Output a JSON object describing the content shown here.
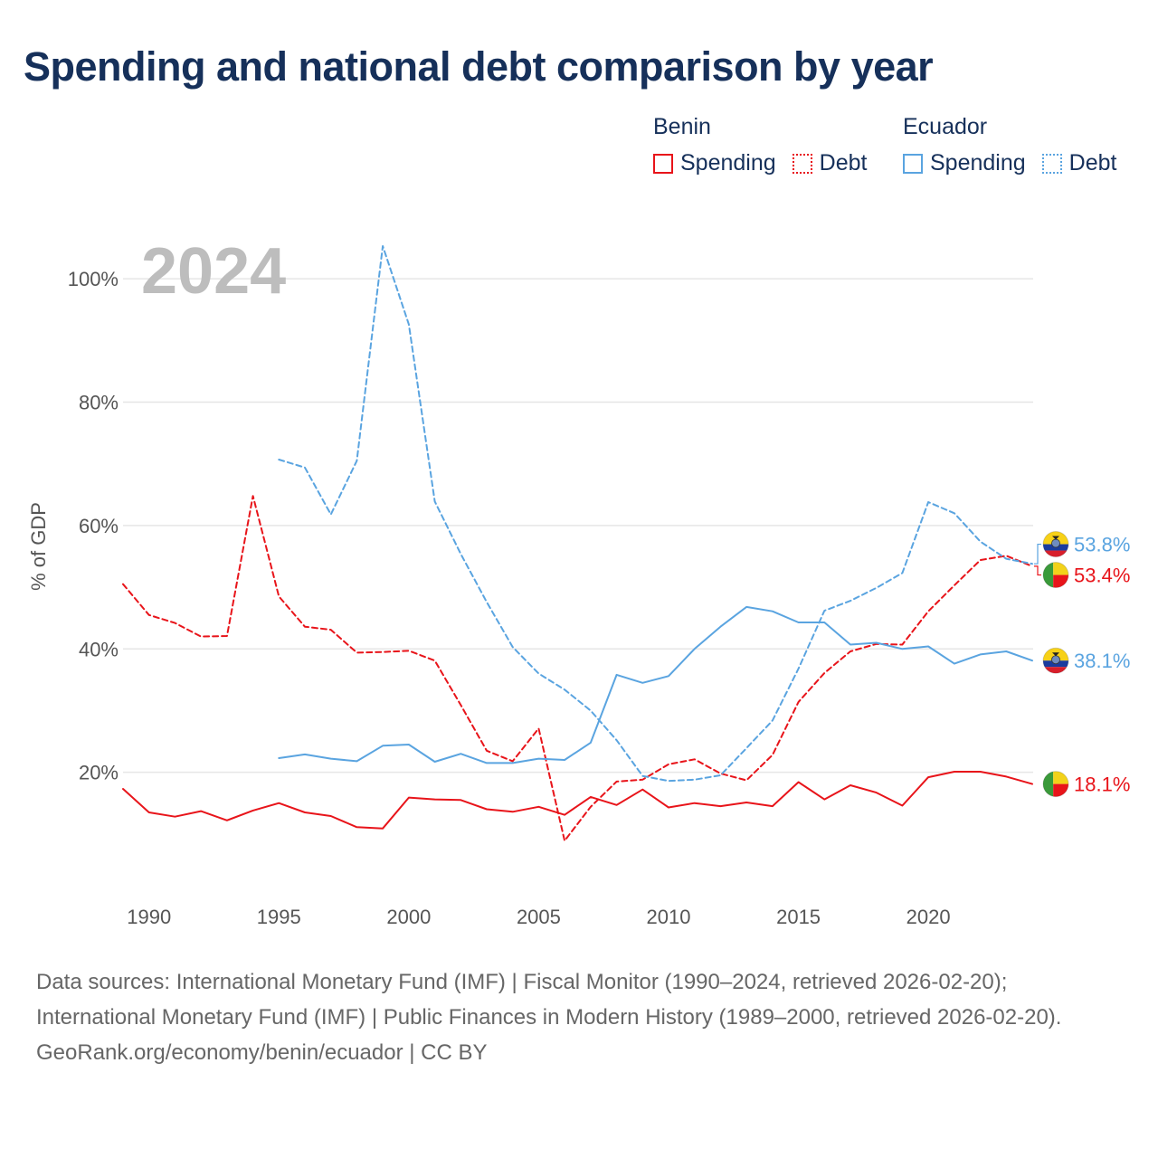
{
  "title": "Spending and national debt comparison by year",
  "colors": {
    "benin": "#e8141a",
    "ecuador": "#5aa4e0",
    "grid": "#e6e6e6",
    "year_watermark": "#bdbdbd"
  },
  "legend": {
    "groups": [
      {
        "country": "Benin",
        "color": "#e8141a",
        "items": [
          {
            "label": "Spending",
            "style": "solid"
          },
          {
            "label": "Debt",
            "style": "dotted"
          }
        ]
      },
      {
        "country": "Ecuador",
        "color": "#5aa4e0",
        "items": [
          {
            "label": "Spending",
            "style": "solid"
          },
          {
            "label": "Debt",
            "style": "dotted"
          }
        ]
      }
    ]
  },
  "chart_data": {
    "type": "line",
    "year_label": "2024",
    "ylabel": "% of GDP",
    "xlabel": "",
    "xlim": [
      1989,
      2024
    ],
    "ylim": [
      0,
      110
    ],
    "x_ticks": [
      1990,
      1995,
      2000,
      2005,
      2010,
      2015,
      2020
    ],
    "y_ticks": [
      20,
      40,
      60,
      80,
      100
    ],
    "y_tick_labels": [
      "20%",
      "40%",
      "60%",
      "80%",
      "100%"
    ],
    "grid": true,
    "series": [
      {
        "name": "Benin Spending",
        "country": "Benin",
        "metric": "Spending",
        "style": "solid",
        "color": "#e8141a",
        "end_label": "18.1%",
        "flag": "benin",
        "x": [
          1989,
          1990,
          1991,
          1992,
          1993,
          1994,
          1995,
          1996,
          1997,
          1998,
          1999,
          2000,
          2001,
          2002,
          2003,
          2004,
          2005,
          2006,
          2007,
          2008,
          2009,
          2010,
          2011,
          2012,
          2013,
          2014,
          2015,
          2016,
          2017,
          2018,
          2019,
          2020,
          2021,
          2022,
          2023,
          2024
        ],
        "values": [
          17.3,
          13.5,
          12.8,
          13.7,
          12.2,
          13.8,
          15.0,
          13.5,
          12.9,
          11.1,
          10.9,
          15.9,
          15.6,
          15.5,
          14.0,
          13.6,
          14.4,
          13.1,
          16.0,
          14.7,
          17.2,
          14.3,
          15.0,
          14.5,
          15.1,
          14.5,
          18.4,
          15.6,
          17.9,
          16.7,
          14.6,
          19.2,
          20.1,
          20.1,
          19.3,
          18.1
        ]
      },
      {
        "name": "Benin Debt",
        "country": "Benin",
        "metric": "Debt",
        "style": "dashed",
        "color": "#e8141a",
        "end_label": "53.4%",
        "flag": "benin",
        "x": [
          1989,
          1990,
          1991,
          1992,
          1993,
          1994,
          1995,
          1996,
          1997,
          1998,
          1999,
          2000,
          2001,
          2002,
          2003,
          2004,
          2005,
          2006,
          2007,
          2008,
          2009,
          2010,
          2011,
          2012,
          2013,
          2014,
          2015,
          2016,
          2017,
          2018,
          2019,
          2020,
          2021,
          2022,
          2023,
          2024
        ],
        "values": [
          50.5,
          45.5,
          44.2,
          42.0,
          42.1,
          64.8,
          48.5,
          43.6,
          43.1,
          39.4,
          39.5,
          39.7,
          38.1,
          30.9,
          23.5,
          21.8,
          27.1,
          8.9,
          14.4,
          18.5,
          18.8,
          21.3,
          22.1,
          19.8,
          18.7,
          22.8,
          31.4,
          36.1,
          39.6,
          40.8,
          40.7,
          46.1,
          50.3,
          54.4,
          55.1,
          53.4
        ]
      },
      {
        "name": "Ecuador Spending",
        "country": "Ecuador",
        "metric": "Spending",
        "style": "solid",
        "color": "#5aa4e0",
        "end_label": "38.1%",
        "flag": "ecuador",
        "x": [
          1995,
          1996,
          1997,
          1998,
          1999,
          2000,
          2001,
          2002,
          2003,
          2004,
          2005,
          2006,
          2007,
          2008,
          2009,
          2010,
          2011,
          2012,
          2013,
          2014,
          2015,
          2016,
          2017,
          2018,
          2019,
          2020,
          2021,
          2022,
          2023,
          2024
        ],
        "values": [
          22.3,
          22.9,
          22.2,
          21.8,
          24.3,
          24.5,
          21.7,
          23.0,
          21.5,
          21.5,
          22.2,
          22.0,
          24.8,
          35.8,
          34.5,
          35.6,
          40.0,
          43.6,
          46.8,
          46.1,
          44.3,
          44.3,
          40.7,
          41.0,
          40.0,
          40.4,
          37.6,
          39.1,
          39.6,
          38.1
        ]
      },
      {
        "name": "Ecuador Debt",
        "country": "Ecuador",
        "metric": "Debt",
        "style": "dashed",
        "color": "#5aa4e0",
        "end_label": "53.8%",
        "flag": "ecuador",
        "x": [
          1995,
          1996,
          1997,
          1998,
          1999,
          2000,
          2001,
          2002,
          2003,
          2004,
          2005,
          2006,
          2007,
          2008,
          2009,
          2010,
          2011,
          2012,
          2013,
          2014,
          2015,
          2016,
          2017,
          2018,
          2019,
          2020,
          2021,
          2022,
          2023,
          2024
        ],
        "values": [
          70.7,
          69.4,
          61.8,
          70.5,
          105.3,
          92.6,
          63.9,
          55.4,
          47.6,
          40.3,
          36.0,
          33.4,
          30.0,
          25.2,
          19.4,
          18.6,
          18.8,
          19.5,
          23.9,
          28.4,
          36.8,
          46.2,
          47.8,
          49.9,
          52.3,
          63.8,
          62.0,
          57.4,
          54.6,
          53.8
        ]
      }
    ]
  },
  "footer": {
    "sources": "Data sources: International Monetary Fund (IMF) | Fiscal Monitor (1990–2024, retrieved 2026-02-20); International Monetary Fund (IMF) | Public Finances in Modern History (1989–2000, retrieved 2026-02-20).",
    "credit": "GeoRank.org/economy/benin/ecuador | CC BY"
  }
}
